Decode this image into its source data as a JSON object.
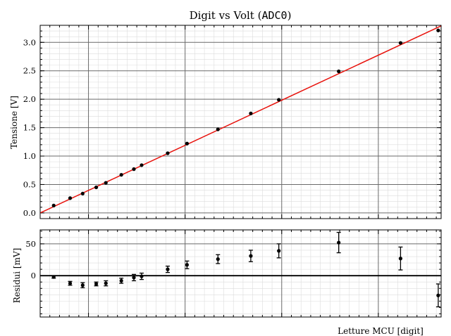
{
  "chart_data": [
    {
      "type": "scatter",
      "title_text": "Digit vs Volt (",
      "title_code": "ADC0",
      "title_close": ")",
      "ylabel": "Tensione [V]",
      "xlabel": "",
      "xlim": [
        0,
        4150
      ],
      "ylim": [
        -0.1,
        3.3
      ],
      "yticks": [
        "0.0",
        "0.5",
        "1.0",
        "1.5",
        "2.0",
        "2.5",
        "3.0"
      ],
      "grid": true,
      "series": [
        {
          "x": [
            140,
            310,
            440,
            580,
            680,
            840,
            970,
            1050,
            1320,
            1520,
            1840,
            2180,
            2470,
            3090,
            3730,
            4120
          ],
          "y": [
            0.13,
            0.26,
            0.34,
            0.45,
            0.53,
            0.67,
            0.77,
            0.84,
            1.05,
            1.22,
            1.47,
            1.75,
            1.99,
            2.49,
            2.99,
            3.21
          ],
          "color": "#000000"
        }
      ],
      "fit_line": {
        "x": [
          0,
          4150
        ],
        "y": [
          0.0,
          3.29
        ],
        "color": "#e8120c"
      }
    },
    {
      "type": "scatter",
      "ylabel": "Residui [mV]",
      "xlabel": "Letture MCU [digit]",
      "xlim": [
        0,
        4150
      ],
      "ylim": [
        -65,
        72
      ],
      "yticks": [
        "0",
        "50"
      ],
      "grid": true,
      "series": [
        {
          "x": [
            140,
            310,
            440,
            580,
            680,
            840,
            970,
            1050,
            1320,
            1520,
            1840,
            2180,
            2470,
            3090,
            3730,
            4120
          ],
          "y": [
            -2,
            -12,
            -15,
            -13,
            -12,
            -8,
            -3,
            -1,
            10,
            17,
            26,
            31,
            39,
            52,
            27,
            -31
          ],
          "err": [
            2,
            3,
            4,
            3,
            4,
            4,
            5,
            5,
            5,
            6,
            7,
            9,
            11,
            16,
            18,
            18
          ],
          "color": "#000000"
        }
      ],
      "zero_line": 0
    }
  ]
}
